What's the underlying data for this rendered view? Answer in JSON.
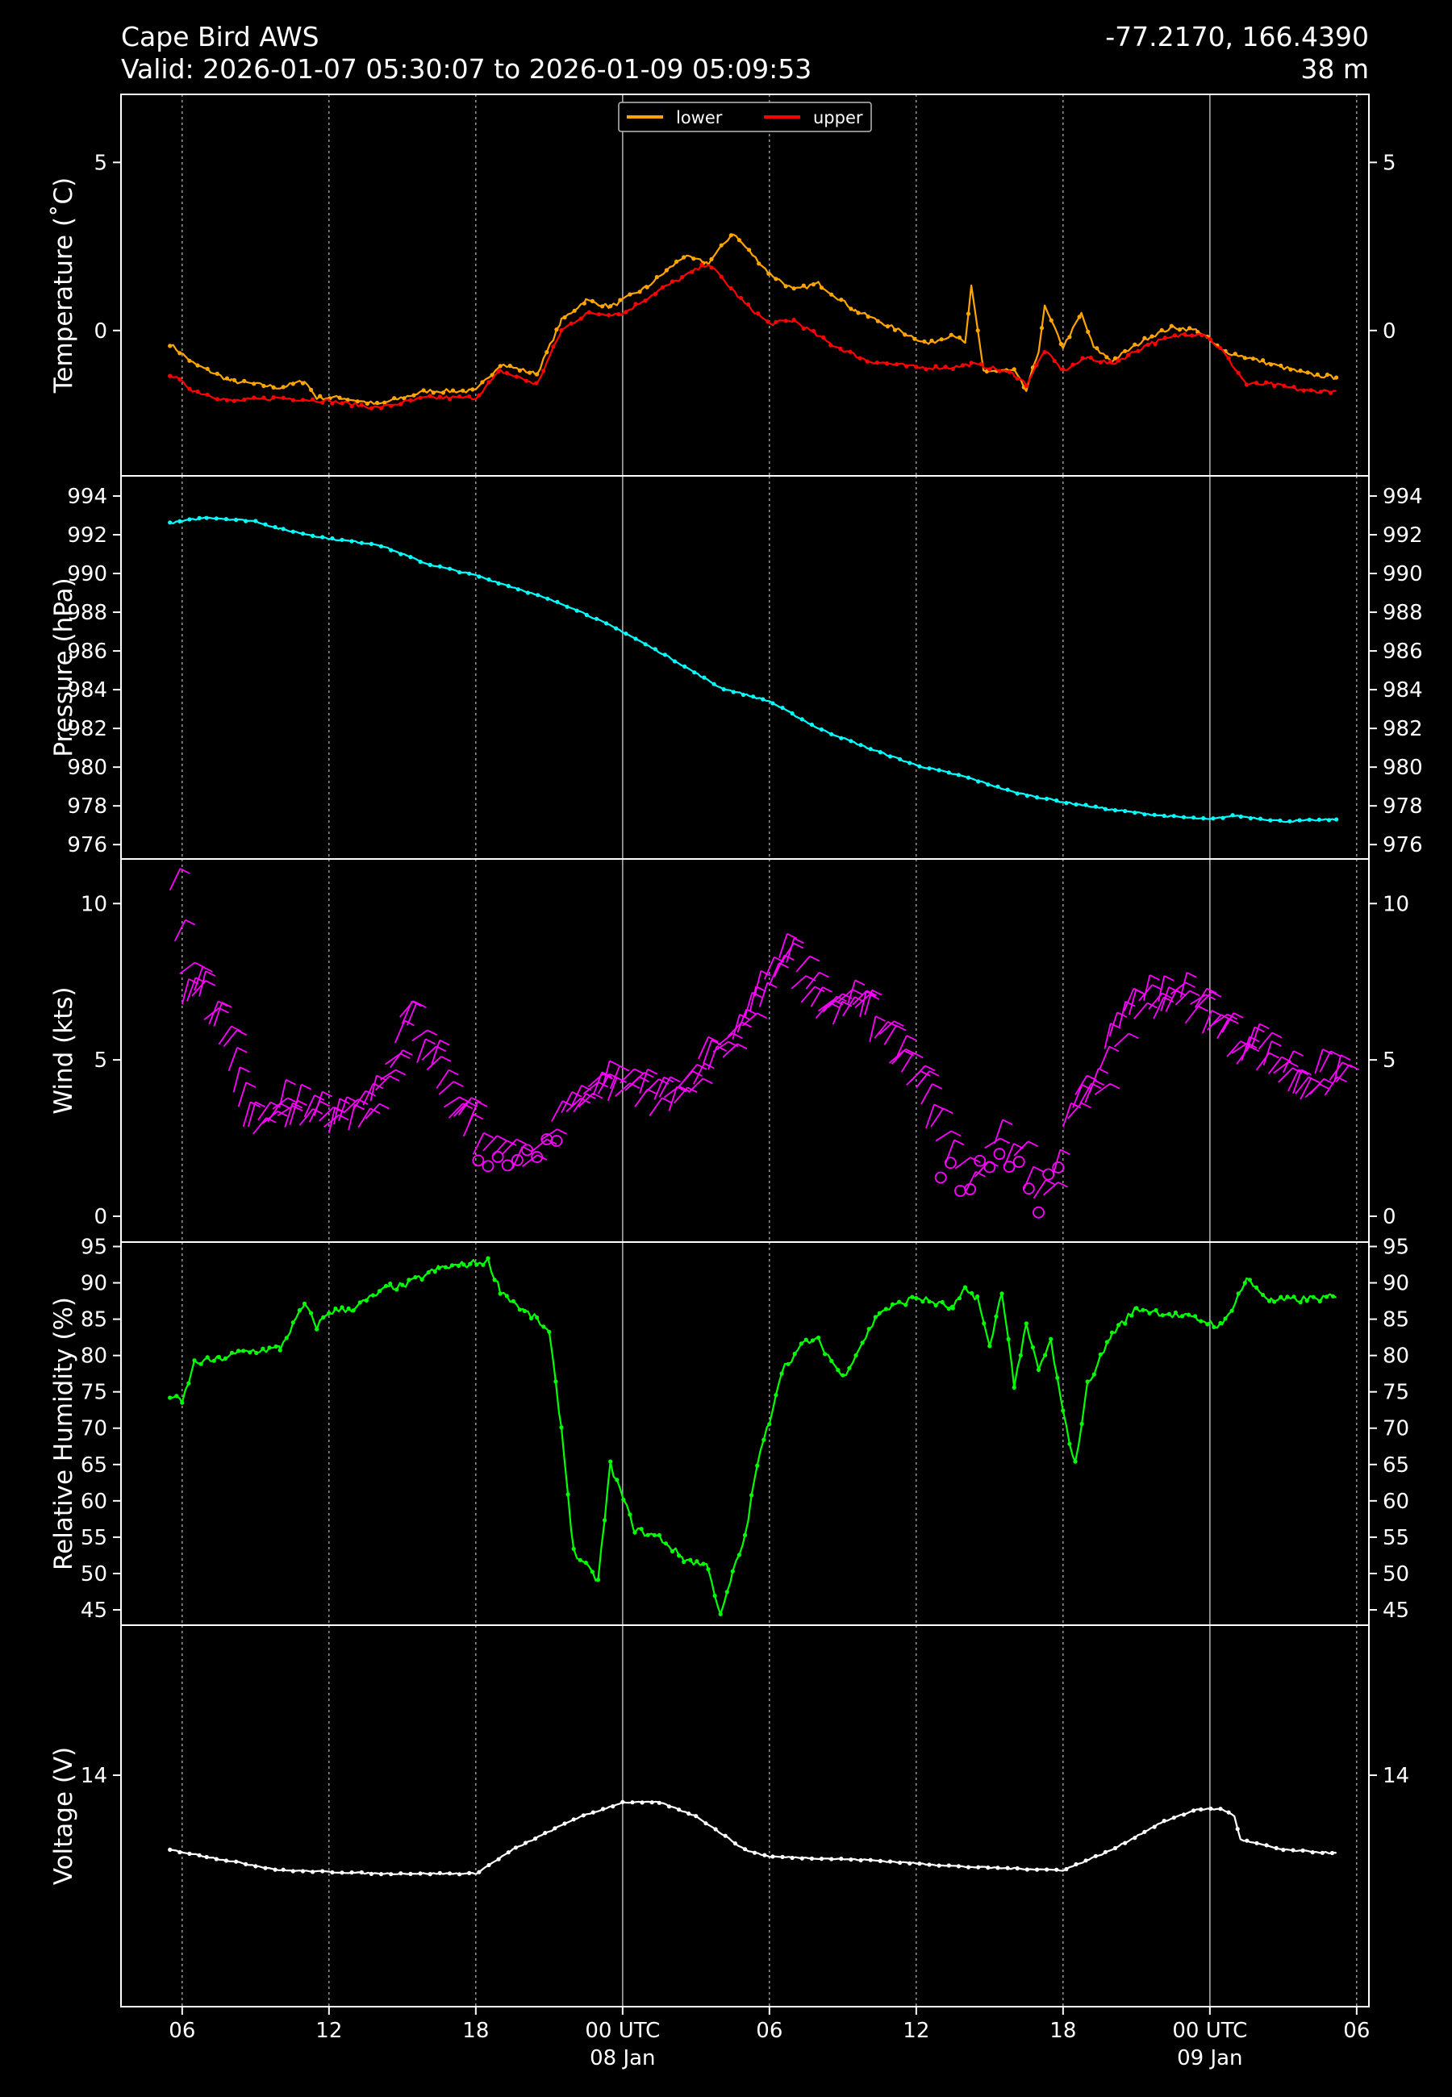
{
  "header": {
    "station": "Cape Bird AWS",
    "valid": "Valid: 2026-01-07 05:30:07 to 2026-01-09 05:09:53",
    "coords": "-77.2170, 166.4390",
    "elevation": "38 m"
  },
  "colors": {
    "background": "#000000",
    "axes": "#ffffff",
    "lower": "#ffa500",
    "upper": "#ff0000",
    "pressure": "#00ffff",
    "wind": "#ff00ff",
    "humidity": "#00ff00",
    "voltage": "#ffffff"
  },
  "x_axis": {
    "start": "2026-01-07 03:30",
    "end": "2026-01-09 06:30",
    "ticks": [
      {
        "time": "2026-01-07 06:00",
        "label": "06",
        "sublabel": ""
      },
      {
        "time": "2026-01-07 12:00",
        "label": "12",
        "sublabel": ""
      },
      {
        "time": "2026-01-07 18:00",
        "label": "18",
        "sublabel": ""
      },
      {
        "time": "2026-01-08 00:00",
        "label": "00 UTC",
        "sublabel": "08 Jan"
      },
      {
        "time": "2026-01-08 06:00",
        "label": "06",
        "sublabel": ""
      },
      {
        "time": "2026-01-08 12:00",
        "label": "12",
        "sublabel": ""
      },
      {
        "time": "2026-01-08 18:00",
        "label": "18",
        "sublabel": ""
      },
      {
        "time": "2026-01-09 00:00",
        "label": "00 UTC",
        "sublabel": "09 Jan"
      },
      {
        "time": "2026-01-09 06:00",
        "label": "06",
        "sublabel": ""
      }
    ]
  },
  "chart_data": [
    {
      "type": "line",
      "ylabel": "Temperature ($^\\circ$C)",
      "ylim": [
        -4.3,
        7.0
      ],
      "yticks": [
        0,
        5
      ],
      "legend": "top-center",
      "series": [
        {
          "name": "lower",
          "color": "#ffa500",
          "x": [
            "2026-01-07 05:30",
            "2026-01-07 06:30",
            "2026-01-07 08:00",
            "2026-01-07 10:00",
            "2026-01-07 11:00",
            "2026-01-07 11:30",
            "2026-01-07 12:30",
            "2026-01-07 14:00",
            "2026-01-07 16:00",
            "2026-01-07 18:00",
            "2026-01-07 19:00",
            "2026-01-07 20:30",
            "2026-01-07 21:30",
            "2026-01-07 22:30",
            "2026-01-07 23:30",
            "2026-01-08 01:00",
            "2026-01-08 02:30",
            "2026-01-08 03:30",
            "2026-01-08 04:30",
            "2026-01-08 06:00",
            "2026-01-08 07:00",
            "2026-01-08 08:00",
            "2026-01-08 09:30",
            "2026-01-08 11:00",
            "2026-01-08 12:30",
            "2026-01-08 13:30",
            "2026-01-08 14:00",
            "2026-01-08 14:15",
            "2026-01-08 14:45",
            "2026-01-08 16:00",
            "2026-01-08 16:30",
            "2026-01-08 17:00",
            "2026-01-08 17:15",
            "2026-01-08 18:00",
            "2026-01-08 18:45",
            "2026-01-08 19:15",
            "2026-01-08 20:00",
            "2026-01-08 21:30",
            "2026-01-08 22:30",
            "2026-01-08 23:30",
            "2026-01-09 00:30",
            "2026-01-09 01:30",
            "2026-01-09 02:30",
            "2026-01-09 04:00",
            "2026-01-09 05:10"
          ],
          "y": [
            -0.4,
            -1.0,
            -1.5,
            -1.7,
            -1.5,
            -2.0,
            -2.0,
            -2.2,
            -1.8,
            -1.8,
            -1.0,
            -1.3,
            0.3,
            0.9,
            0.7,
            1.3,
            2.2,
            2.0,
            2.9,
            1.7,
            1.2,
            1.4,
            0.6,
            0.1,
            -0.4,
            -0.1,
            -0.4,
            1.3,
            -1.2,
            -1.2,
            -1.8,
            -0.6,
            0.7,
            -0.5,
            0.5,
            -0.5,
            -0.9,
            -0.2,
            0.1,
            0.0,
            -0.6,
            -0.8,
            -1.0,
            -1.3,
            -1.4
          ]
        },
        {
          "name": "upper",
          "color": "#ff0000",
          "x": [
            "2026-01-07 05:30",
            "2026-01-07 06:30",
            "2026-01-07 08:00",
            "2026-01-07 10:00",
            "2026-01-07 12:00",
            "2026-01-07 14:00",
            "2026-01-07 16:00",
            "2026-01-07 18:00",
            "2026-01-07 19:00",
            "2026-01-07 20:30",
            "2026-01-07 21:30",
            "2026-01-07 22:30",
            "2026-01-08 00:00",
            "2026-01-08 01:30",
            "2026-01-08 03:30",
            "2026-01-08 05:00",
            "2026-01-08 06:00",
            "2026-01-08 07:00",
            "2026-01-08 08:30",
            "2026-01-08 10:00",
            "2026-01-08 12:00",
            "2026-01-08 13:30",
            "2026-01-08 14:15",
            "2026-01-08 15:00",
            "2026-01-08 16:00",
            "2026-01-08 16:30",
            "2026-01-08 17:15",
            "2026-01-08 18:00",
            "2026-01-08 19:00",
            "2026-01-08 20:00",
            "2026-01-08 21:30",
            "2026-01-08 23:00",
            "2026-01-08 23:45",
            "2026-01-09 00:30",
            "2026-01-09 01:30",
            "2026-01-09 02:30",
            "2026-01-09 04:00",
            "2026-01-09 05:10"
          ],
          "y": [
            -1.3,
            -1.8,
            -2.1,
            -2.0,
            -2.1,
            -2.3,
            -2.0,
            -2.0,
            -1.2,
            -1.6,
            0.0,
            0.5,
            0.5,
            1.2,
            2.0,
            0.8,
            0.2,
            0.3,
            -0.4,
            -0.9,
            -1.1,
            -1.1,
            -1.0,
            -1.1,
            -1.3,
            -1.6,
            -0.6,
            -1.2,
            -0.8,
            -1.0,
            -0.4,
            -0.1,
            -0.1,
            -0.6,
            -1.6,
            -1.6,
            -1.8,
            -1.8
          ]
        }
      ]
    },
    {
      "type": "line",
      "ylabel": "Pressure (hPa)",
      "ylim": [
        975.3,
        995.0
      ],
      "yticks": [
        976,
        978,
        980,
        982,
        984,
        986,
        988,
        990,
        992,
        994
      ],
      "series": [
        {
          "name": "",
          "color": "#00ffff",
          "x": [
            "2026-01-07 05:30",
            "2026-01-07 07:00",
            "2026-01-07 09:00",
            "2026-01-07 10:00",
            "2026-01-07 12:00",
            "2026-01-07 14:00",
            "2026-01-07 16:00",
            "2026-01-07 18:00",
            "2026-01-07 20:00",
            "2026-01-07 22:00",
            "2026-01-08 00:00",
            "2026-01-08 02:00",
            "2026-01-08 04:00",
            "2026-01-08 06:00",
            "2026-01-08 08:00",
            "2026-01-08 10:00",
            "2026-01-08 12:00",
            "2026-01-08 14:00",
            "2026-01-08 16:00",
            "2026-01-08 18:00",
            "2026-01-08 20:00",
            "2026-01-08 22:00",
            "2026-01-09 00:00",
            "2026-01-09 01:00",
            "2026-01-09 03:00",
            "2026-01-09 05:10"
          ],
          "y": [
            992.6,
            992.9,
            992.7,
            992.3,
            991.8,
            991.5,
            990.5,
            989.9,
            989.1,
            988.2,
            987.0,
            985.6,
            984.1,
            983.4,
            982.0,
            981.0,
            980.1,
            979.5,
            978.7,
            978.2,
            977.8,
            977.5,
            977.3,
            977.5,
            977.2,
            977.3
          ]
        }
      ]
    },
    {
      "type": "scatter",
      "ylabel": "Wind (kts)",
      "ylim": [
        -0.8,
        11.4
      ],
      "yticks": [
        0,
        5,
        10
      ],
      "series": [
        {
          "name": "",
          "color": "#ff00ff",
          "x": [
            "2026-01-07 05:30",
            "2026-01-07 06:00",
            "2026-01-07 06:30",
            "2026-01-07 07:30",
            "2026-01-07 08:30",
            "2026-01-07 10:00",
            "2026-01-07 12:00",
            "2026-01-07 13:30",
            "2026-01-07 15:00",
            "2026-01-07 16:30",
            "2026-01-07 18:30",
            "2026-01-07 20:30",
            "2026-01-07 22:00",
            "2026-01-07 23:30",
            "2026-01-08 01:30",
            "2026-01-08 03:30",
            "2026-01-08 05:00",
            "2026-01-08 06:30",
            "2026-01-08 08:00",
            "2026-01-08 09:30",
            "2026-01-08 11:00",
            "2026-01-08 12:00",
            "2026-01-08 13:00",
            "2026-01-08 14:00",
            "2026-01-08 15:00",
            "2026-01-08 16:00",
            "2026-01-08 17:00",
            "2026-01-08 18:30",
            "2026-01-08 19:30",
            "2026-01-08 20:30",
            "2026-01-08 22:00",
            "2026-01-08 23:30",
            "2026-01-09 00:30",
            "2026-01-09 02:00",
            "2026-01-09 03:30",
            "2026-01-09 05:10"
          ],
          "y": [
            10.0,
            7.2,
            7.0,
            5.5,
            3.0,
            3.2,
            3.0,
            3.2,
            6.2,
            4.0,
            1.5,
            2.0,
            3.5,
            4.0,
            3.5,
            5.0,
            6.3,
            8.0,
            6.5,
            6.5,
            5.0,
            4.0,
            1.5,
            1.0,
            2.0,
            2.0,
            0.3,
            3.5,
            4.5,
            6.5,
            6.8,
            6.5,
            5.5,
            5.0,
            4.0,
            4.3
          ]
        }
      ]
    },
    {
      "type": "line",
      "ylabel": "Relative Humidity (%)",
      "ylim": [
        43.0,
        95.5
      ],
      "yticks": [
        45,
        50,
        55,
        60,
        65,
        70,
        75,
        80,
        85,
        90,
        95
      ],
      "series": [
        {
          "name": "",
          "color": "#00ff00",
          "x": [
            "2026-01-07 05:30",
            "2026-01-07 06:00",
            "2026-01-07 06:30",
            "2026-01-07 07:30",
            "2026-01-07 08:30",
            "2026-01-07 10:00",
            "2026-01-07 11:00",
            "2026-01-07 11:30",
            "2026-01-07 12:00",
            "2026-01-07 13:00",
            "2026-01-07 14:30",
            "2026-01-07 15:00",
            "2026-01-07 16:30",
            "2026-01-07 17:30",
            "2026-01-07 18:30",
            "2026-01-07 19:00",
            "2026-01-07 20:00",
            "2026-01-07 20:30",
            "2026-01-07 21:00",
            "2026-01-07 21:30",
            "2026-01-07 22:00",
            "2026-01-07 22:30",
            "2026-01-07 23:00",
            "2026-01-07 23:30",
            "2026-01-08 00:30",
            "2026-01-08 01:30",
            "2026-01-08 02:30",
            "2026-01-08 03:30",
            "2026-01-08 04:00",
            "2026-01-08 04:30",
            "2026-01-08 05:00",
            "2026-01-08 05:30",
            "2026-01-08 06:00",
            "2026-01-08 06:30",
            "2026-01-08 07:30",
            "2026-01-08 08:00",
            "2026-01-08 09:00",
            "2026-01-08 10:30",
            "2026-01-08 12:00",
            "2026-01-08 13:30",
            "2026-01-08 14:00",
            "2026-01-08 14:30",
            "2026-01-08 15:00",
            "2026-01-08 15:30",
            "2026-01-08 16:00",
            "2026-01-08 16:30",
            "2026-01-08 17:00",
            "2026-01-08 17:30",
            "2026-01-08 18:00",
            "2026-01-08 18:30",
            "2026-01-08 19:00",
            "2026-01-08 20:00",
            "2026-01-08 21:00",
            "2026-01-08 23:30",
            "2026-01-09 00:30",
            "2026-01-09 01:30",
            "2026-01-09 02:30",
            "2026-01-09 05:10"
          ],
          "y": [
            74.5,
            73.5,
            79,
            79.5,
            80.5,
            81,
            87,
            84,
            86,
            86.5,
            89.5,
            89.5,
            92,
            92.5,
            93,
            89,
            86,
            85,
            83,
            70,
            53,
            51,
            49,
            65,
            56,
            55,
            52,
            51,
            44,
            50,
            55,
            65,
            71,
            78,
            82,
            82,
            77,
            86,
            88,
            86.5,
            89,
            88,
            81,
            89,
            76,
            84,
            78,
            82,
            72,
            65,
            76,
            83,
            86.5,
            85,
            84,
            90.5,
            87.5,
            88
          ]
        }
      ]
    },
    {
      "type": "line",
      "ylabel": "Voltage (V)",
      "ylim": [
        10.6,
        16.2
      ],
      "yticks": [
        14
      ],
      "series": [
        {
          "name": "",
          "color": "#ffffff",
          "x": [
            "2026-01-07 05:30",
            "2026-01-07 07:00",
            "2026-01-07 10:00",
            "2026-01-07 14:00",
            "2026-01-07 18:00",
            "2026-01-07 19:30",
            "2026-01-07 22:00",
            "2026-01-08 00:00",
            "2026-01-08 01:30",
            "2026-01-08 03:00",
            "2026-01-08 05:00",
            "2026-01-08 06:00",
            "2026-01-08 10:00",
            "2026-01-08 14:00",
            "2026-01-08 18:00",
            "2026-01-08 20:00",
            "2026-01-08 22:00",
            "2026-01-08 23:30",
            "2026-01-09 00:30",
            "2026-01-09 01:00",
            "2026-01-09 01:15",
            "2026-01-09 03:00",
            "2026-01-09 05:10"
          ],
          "y": [
            12.9,
            12.8,
            12.6,
            12.55,
            12.55,
            12.9,
            13.35,
            13.6,
            13.6,
            13.4,
            12.9,
            12.8,
            12.75,
            12.65,
            12.6,
            12.9,
            13.3,
            13.5,
            13.5,
            13.4,
            13.05,
            12.9,
            12.85
          ]
        }
      ]
    }
  ]
}
